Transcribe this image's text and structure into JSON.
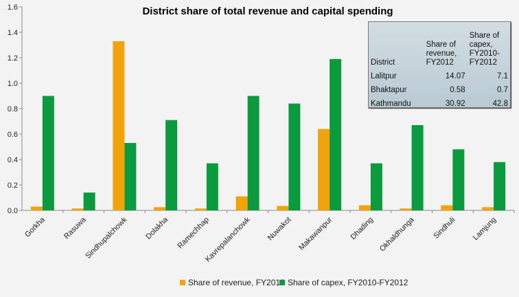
{
  "chart_data": {
    "type": "bar",
    "title": "District share of total revenue and capital spending",
    "xlabel": "",
    "ylabel": "",
    "ylim": [
      0,
      1.6
    ],
    "yticks": [
      "0.0",
      "0.2",
      "0.4",
      "0.6",
      "0.8",
      "1.0",
      "1.2",
      "1.4",
      "1.6"
    ],
    "grid": false,
    "legend": "bottom",
    "categories": [
      "Gorkha",
      "Rasuwa",
      "Sindhupalchowk",
      "Dolakha",
      "Ramechhap",
      "Kavrepalanchowk",
      "Nuwakot",
      "Makawanpur",
      "Dhading",
      "Okhaldhunga",
      "Sindhuli",
      "Lamjung"
    ],
    "series": [
      {
        "name": "Share of revenue, FY2012",
        "color": "#f0a30a",
        "values": [
          0.03,
          0.015,
          1.33,
          0.025,
          0.015,
          0.11,
          0.035,
          0.64,
          0.04,
          0.015,
          0.04,
          0.025
        ]
      },
      {
        "name": "Share of capex, FY2010-FY2012",
        "color": "#0b9b3e",
        "values": [
          0.9,
          0.14,
          0.53,
          0.71,
          0.37,
          0.9,
          0.84,
          1.19,
          0.37,
          0.67,
          0.48,
          0.38
        ]
      }
    ],
    "inset_table": {
      "headers": [
        "District",
        "Share of revenue, FY2012",
        "Share of capex, FY2010-FY2012"
      ],
      "header_lines": [
        [
          "District"
        ],
        [
          "Share of",
          "revenue,",
          "FY2012"
        ],
        [
          "Share of",
          "capex,",
          "FY2010-",
          "FY2012"
        ]
      ],
      "rows": [
        [
          "Lalitpur",
          "14.07",
          "7.1"
        ],
        [
          "Bhaktapur",
          "0.58",
          "0.7"
        ],
        [
          "Kathmandu",
          "30.92",
          "42.8"
        ]
      ]
    }
  }
}
